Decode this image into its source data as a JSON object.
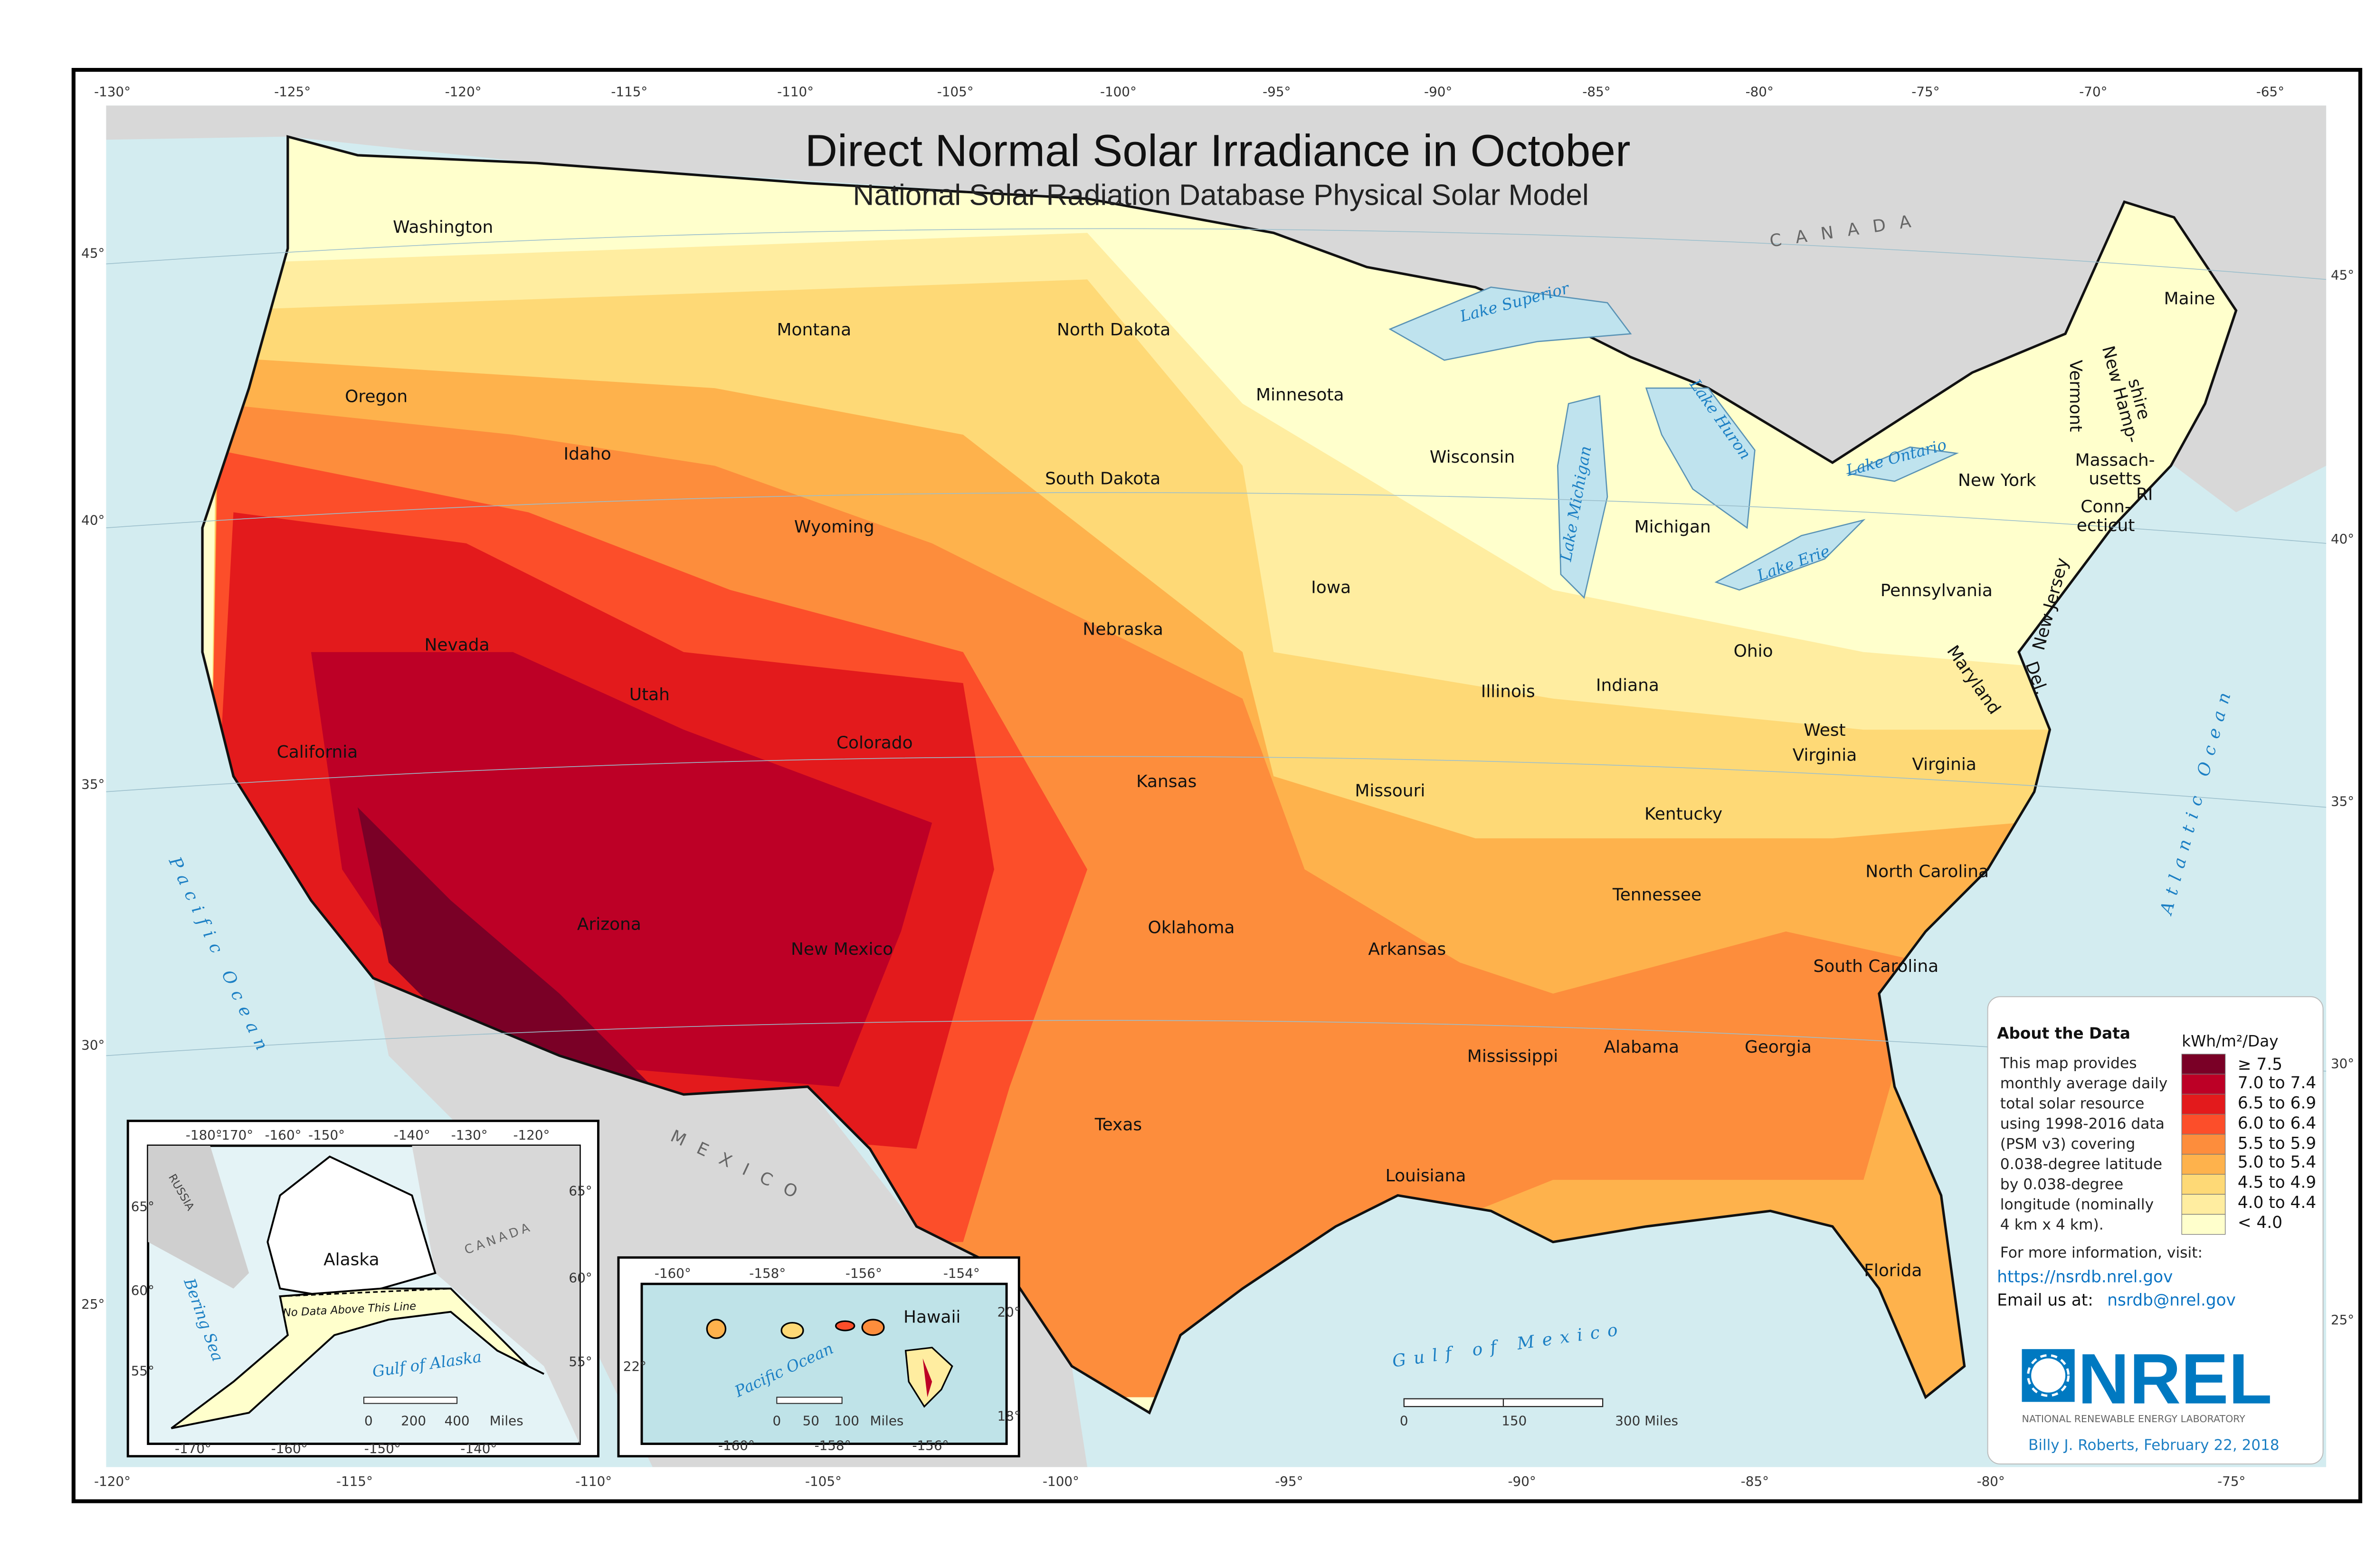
{
  "title": "Direct Normal Solar Irradiance in October",
  "subtitle": "National Solar Radiation Database Physical Solar Model",
  "legend": {
    "unit": "kWh/m²/Day",
    "items": [
      {
        "label": "≥ 7.5",
        "color": "#7a0026"
      },
      {
        "label": "7.0 to 7.4",
        "color": "#bd0026"
      },
      {
        "label": "6.5 to 6.9",
        "color": "#e31a1c"
      },
      {
        "label": "6.0 to 6.4",
        "color": "#fc4e2a"
      },
      {
        "label": "5.5 to 5.9",
        "color": "#fd8d3c"
      },
      {
        "label": "5.0 to 5.4",
        "color": "#feb24c"
      },
      {
        "label": "4.5 to 4.9",
        "color": "#fed976"
      },
      {
        "label": "4.0 to 4.4",
        "color": "#ffeda0"
      },
      {
        "label": "< 4.0",
        "color": "#ffffcc"
      }
    ]
  },
  "about": {
    "heading": "About the Data",
    "lines": [
      "This map provides",
      "monthly average daily",
      "total solar resource",
      "using 1998-2016 data",
      "(PSM v3) covering",
      "0.038-degree latitude",
      "by 0.038-degree",
      "longitude (nominally",
      "4 km x 4 km).",
      "For more information, visit:"
    ],
    "url": "https://nsrdb.nrel.gov",
    "email_label": "Email us at:",
    "email": "nsrdb@nrel.gov"
  },
  "logo": {
    "text": "NREL",
    "tagline": "NATIONAL RENEWABLE ENERGY LABORATORY",
    "color": "#0079c1"
  },
  "credit": "Billy J. Roberts,  February 22, 2018",
  "states": [
    "Washington",
    "Oregon",
    "California",
    "Nevada",
    "Idaho",
    "Montana",
    "Wyoming",
    "Utah",
    "Colorado",
    "Arizona",
    "New Mexico",
    "North Dakota",
    "South Dakota",
    "Nebraska",
    "Kansas",
    "Oklahoma",
    "Texas",
    "Minnesota",
    "Iowa",
    "Missouri",
    "Arkansas",
    "Louisiana",
    "Wisconsin",
    "Illinois",
    "Michigan",
    "Indiana",
    "Ohio",
    "Kentucky",
    "Tennessee",
    "Mississippi",
    "Alabama",
    "Georgia",
    "Florida",
    "South Carolina",
    "North Carolina",
    "Virginia",
    "West",
    "Virginia",
    "Pennsylvania",
    "New York",
    "Maryland",
    "Del.",
    "New Jersey",
    "Conn-",
    "ecticut",
    "RI",
    "Massach-",
    "usetts",
    "Vermont",
    "New Hamp-",
    "shire",
    "Maine"
  ],
  "water": [
    "Lake Superior",
    "Lake Michigan",
    "Lake Huron",
    "Lake Ontario",
    "Lake Erie",
    "Pacific Ocean",
    "Atlantic Ocean",
    "Gulf of Mexico"
  ],
  "countries": [
    "CANADA",
    "MEXICO"
  ],
  "top_lon": [
    "-130°",
    "-125°",
    "-120°",
    "-115°",
    "-110°",
    "-105°",
    "-100°",
    "-95°",
    "-90°",
    "-85°",
    "-80°",
    "-75°",
    "-70°",
    "-65°"
  ],
  "bottom_lon": [
    "-120°",
    "-115°",
    "-110°",
    "-105°",
    "-100°",
    "-95°",
    "-90°",
    "-85°",
    "-80°",
    "-75°"
  ],
  "left_lat": [
    "45°",
    "40°",
    "35°",
    "30°",
    "25°"
  ],
  "right_lat": [
    "45°",
    "40°",
    "35°",
    "30°",
    "25°"
  ],
  "scale_main": [
    "0",
    "150",
    "300  Miles"
  ],
  "alaska_inset": {
    "label": "Alaska",
    "russia": "RUSSIA",
    "canada": "CANADA",
    "bering": "Bering Sea",
    "gulf": "Gulf of Alaska",
    "no_data": "No Data Above This Line",
    "top_lon": [
      "-180°",
      "-170°",
      "-160°",
      "-150°",
      "-140°",
      "-130°",
      "-120°"
    ],
    "bottom_lon": [
      "-170°",
      "-160°",
      "-150°",
      "-140°"
    ],
    "left_lat": [
      "65°",
      "60°",
      "55°"
    ],
    "right_lat": [
      "65°",
      "60°",
      "55°"
    ],
    "scale": [
      "0",
      "200",
      "400",
      "Miles"
    ]
  },
  "hawaii_inset": {
    "label": "Hawaii",
    "ocean": "Pacific Ocean",
    "top_lon": [
      "-160°",
      "-158°",
      "-156°",
      "-154°"
    ],
    "bottom_lon": [
      "-160°",
      "-158°",
      "-156°"
    ],
    "left_lat": [
      "22°"
    ],
    "right_lat": [
      "20°",
      "18°"
    ],
    "scale": [
      "0",
      "50",
      "100",
      "Miles"
    ]
  }
}
